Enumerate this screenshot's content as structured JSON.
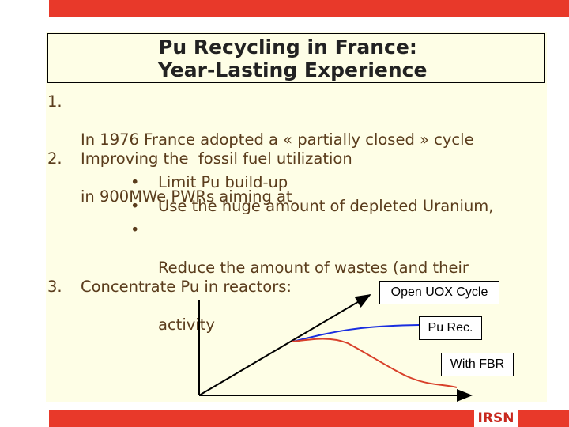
{
  "header": {
    "title_lines": [
      "Pu Recycling in France:",
      "Year-Lasting Experience"
    ]
  },
  "items": [
    {
      "number": "1.",
      "lines": [
        "In 1976 France adopted a « partially closed » cycle",
        "in 900MWe PWRs aiming at"
      ]
    },
    {
      "number": "2.",
      "lines": [
        "Improving the  fossil fuel utilization"
      ],
      "bullets": [
        [
          "Limit Pu build-up"
        ],
        [
          "Use the huge amount of depleted Uranium,"
        ],
        [
          "Reduce the amount of wastes (and their",
          "activity"
        ]
      ]
    },
    {
      "number": "3.",
      "lines": [
        "Concentrate Pu in reactors:"
      ]
    }
  ],
  "diagram": {
    "labels": [
      "Open UOX Cycle",
      "Pu Rec.",
      "With FBR"
    ]
  },
  "footer": {
    "logo": "IRSN"
  }
}
